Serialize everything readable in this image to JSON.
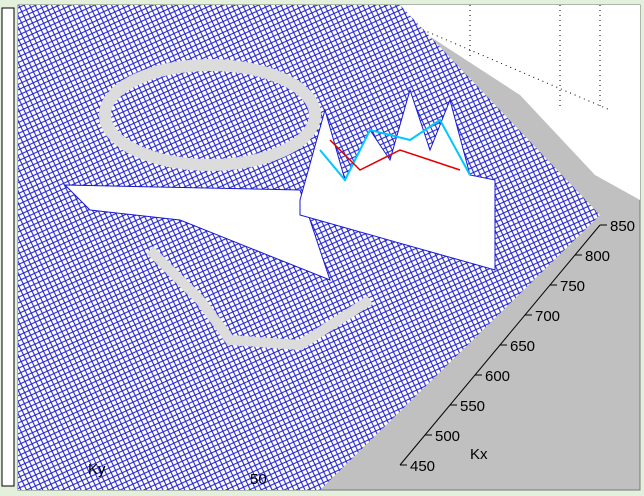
{
  "chart_data": {
    "type": "mesh",
    "xlabel": "Kx",
    "ylabel": "Ky",
    "xlim": [
      450,
      850
    ],
    "xticks": [
      450,
      500,
      550,
      600,
      650,
      700,
      750,
      800,
      850
    ],
    "yticks": [
      50
    ],
    "color": "#1a1ad0"
  }
}
